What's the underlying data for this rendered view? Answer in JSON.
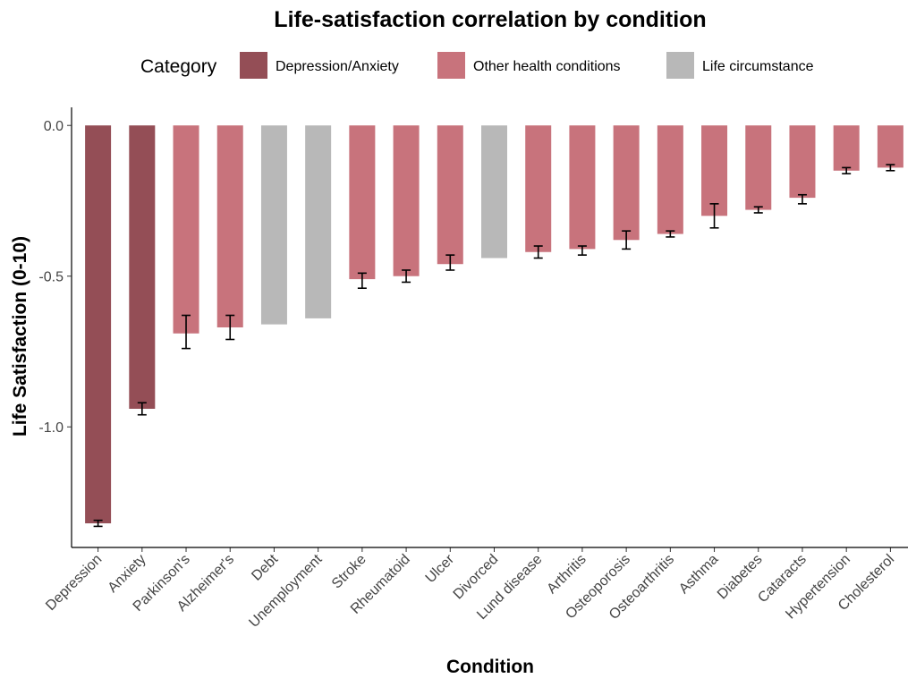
{
  "chart_data": {
    "type": "bar",
    "title": "Life-satisfaction correlation by condition",
    "xlabel": "Condition",
    "ylabel": "Life Satisfaction (0-10)",
    "ylim": [
      -1.4,
      0.06
    ],
    "yticks": [
      0.0,
      -0.5,
      -1.0
    ],
    "ytick_labels": [
      "0.0",
      "-0.5",
      "-1.0"
    ],
    "grid": false,
    "legend": {
      "title": "Category",
      "placement": "top",
      "entries": [
        {
          "name": "Depression/Anxiety",
          "color": "#944e56"
        },
        {
          "name": "Other health conditions",
          "color": "#c8737c"
        },
        {
          "name": "Life circumstance",
          "color": "#b8b8b8"
        }
      ]
    },
    "categories": [
      "Depression",
      "Anxiety",
      "Parkinson's",
      "Alzheimer's",
      "Debt",
      "Unemployment",
      "Stroke",
      "Rheumatoid",
      "Ulcer",
      "Divorced",
      "Lund disease",
      "Arthritis",
      "Osteoporosis",
      "Osteoarthritis",
      "Asthma",
      "Diabetes",
      "Cataracts",
      "Hypertension",
      "Cholesterol"
    ],
    "groups": [
      "Depression/Anxiety",
      "Depression/Anxiety",
      "Other health conditions",
      "Other health conditions",
      "Life circumstance",
      "Life circumstance",
      "Other health conditions",
      "Other health conditions",
      "Other health conditions",
      "Life circumstance",
      "Other health conditions",
      "Other health conditions",
      "Other health conditions",
      "Other health conditions",
      "Other health conditions",
      "Other health conditions",
      "Other health conditions",
      "Other health conditions",
      "Other health conditions"
    ],
    "values": [
      -1.32,
      -0.94,
      -0.69,
      -0.67,
      -0.66,
      -0.64,
      -0.51,
      -0.5,
      -0.46,
      -0.44,
      -0.42,
      -0.41,
      -0.38,
      -0.36,
      -0.3,
      -0.28,
      -0.24,
      -0.15,
      -0.14
    ],
    "error_low": [
      -1.33,
      -0.96,
      -0.74,
      -0.71,
      null,
      null,
      -0.54,
      -0.52,
      -0.48,
      null,
      -0.44,
      -0.43,
      -0.41,
      -0.37,
      -0.34,
      -0.29,
      -0.26,
      -0.16,
      -0.15
    ],
    "error_high": [
      -1.31,
      -0.92,
      -0.63,
      -0.63,
      null,
      null,
      -0.49,
      -0.48,
      -0.43,
      null,
      -0.4,
      -0.4,
      -0.35,
      -0.35,
      -0.26,
      -0.27,
      -0.23,
      -0.14,
      -0.13
    ]
  }
}
